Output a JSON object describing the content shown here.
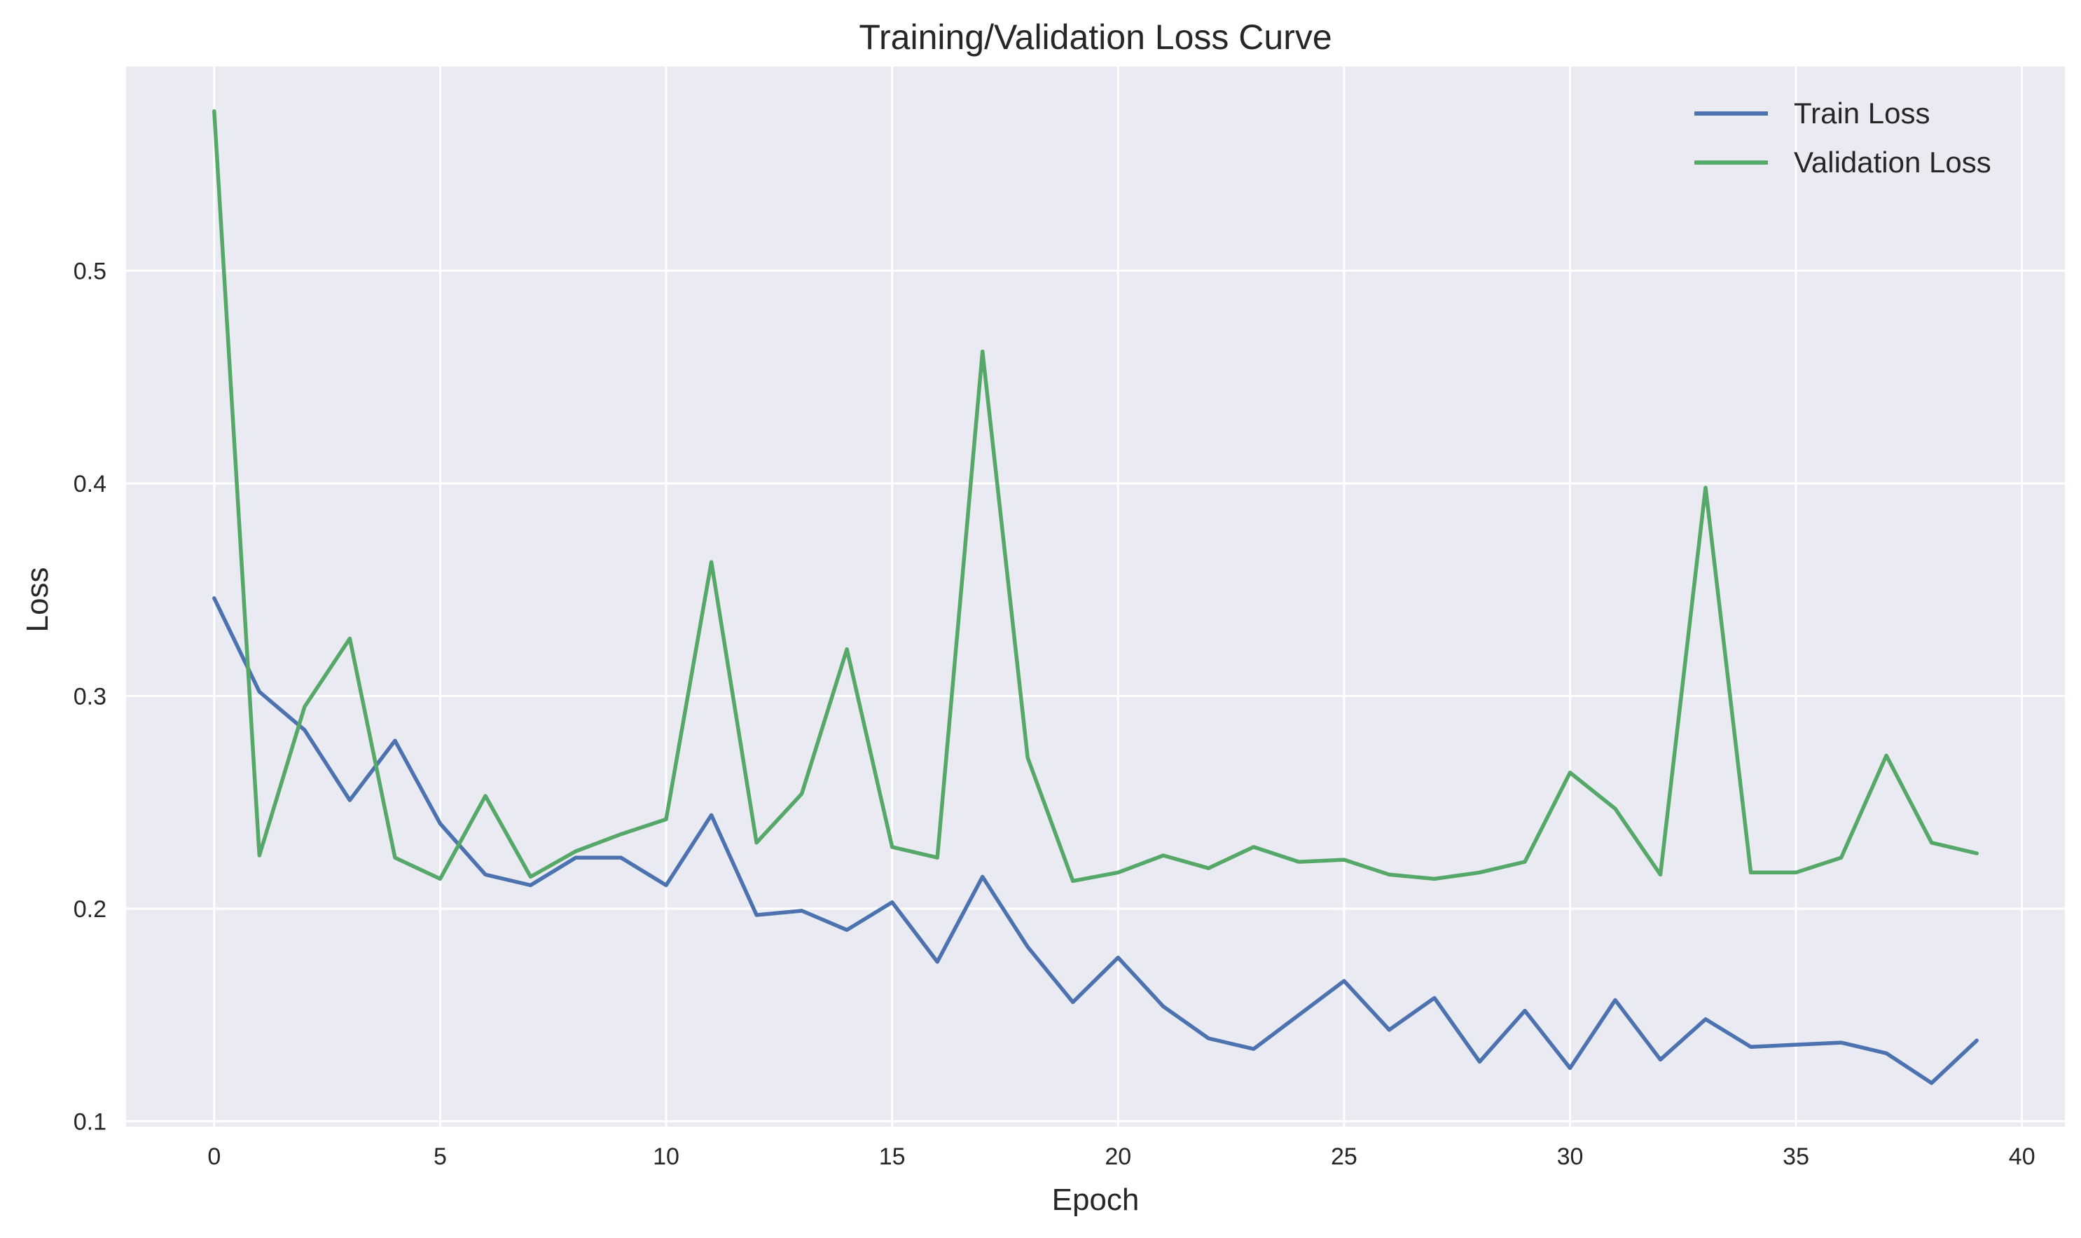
{
  "chart_data": {
    "type": "line",
    "title": "Training/Validation Loss Curve",
    "xlabel": "Epoch",
    "ylabel": "Loss",
    "xlim": [
      -1.95,
      40.95
    ],
    "ylim": [
      0.0975,
      0.596
    ],
    "xticks": [
      0,
      5,
      10,
      15,
      20,
      25,
      30,
      35,
      40
    ],
    "yticks": [
      0.1,
      0.2,
      0.3,
      0.4,
      0.5
    ],
    "xtick_labels": [
      "0",
      "5",
      "10",
      "15",
      "20",
      "25",
      "30",
      "35",
      "40"
    ],
    "ytick_labels": [
      "0.1",
      "0.2",
      "0.3",
      "0.4",
      "0.5"
    ],
    "grid": true,
    "legend_position": "top-right",
    "x": [
      0,
      1,
      2,
      3,
      4,
      5,
      6,
      7,
      8,
      9,
      10,
      11,
      12,
      13,
      14,
      15,
      16,
      17,
      18,
      19,
      20,
      21,
      22,
      23,
      24,
      25,
      26,
      27,
      28,
      29,
      30,
      31,
      32,
      33,
      34,
      35,
      36,
      37,
      38,
      39
    ],
    "series": [
      {
        "name": "Train Loss",
        "color": "#4c72b0",
        "values": [
          0.346,
          0.302,
          0.284,
          0.251,
          0.279,
          0.24,
          0.216,
          0.211,
          0.224,
          0.224,
          0.211,
          0.244,
          0.197,
          0.199,
          0.19,
          0.203,
          0.175,
          0.215,
          0.182,
          0.156,
          0.177,
          0.154,
          0.139,
          0.134,
          0.15,
          0.166,
          0.143,
          0.158,
          0.128,
          0.152,
          0.125,
          0.157,
          0.129,
          0.148,
          0.135,
          0.136,
          0.137,
          0.132,
          0.118,
          0.138
        ]
      },
      {
        "name": "Validation Loss",
        "color": "#55a868",
        "values": [
          0.575,
          0.225,
          0.295,
          0.327,
          0.224,
          0.214,
          0.253,
          0.215,
          0.227,
          0.235,
          0.242,
          0.363,
          0.231,
          0.254,
          0.322,
          0.229,
          0.224,
          0.462,
          0.271,
          0.213,
          0.217,
          0.225,
          0.219,
          0.229,
          0.222,
          0.223,
          0.216,
          0.214,
          0.217,
          0.222,
          0.264,
          0.247,
          0.216,
          0.398,
          0.217,
          0.217,
          0.224,
          0.272,
          0.231,
          0.226
        ]
      }
    ]
  }
}
